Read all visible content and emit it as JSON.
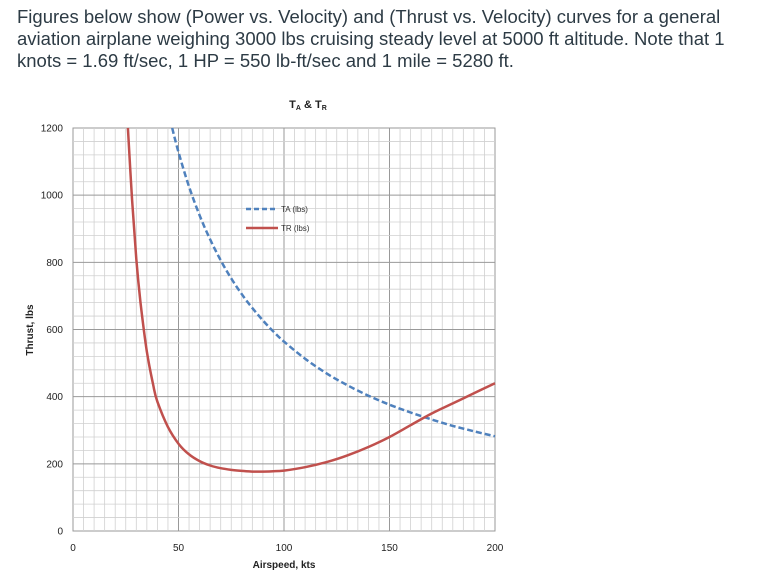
{
  "question": {
    "text": "Figures below show (Power vs. Velocity) and (Thrust vs. Velocity) curves for a general aviation airplane weighing 3000 lbs cruising steady level at 5000 ft altitude. Note that 1 knots = 1.69 ft/sec, 1 HP = 550 lb-ft/sec and 1 mile = 5280 ft."
  },
  "chart_data": {
    "type": "line",
    "title": {
      "main1": "T",
      "sub1": "A",
      "mid": " & T",
      "sub2": "R"
    },
    "xlabel": "Airspeed, kts",
    "ylabel": "Thrust, lbs",
    "xlim": [
      0,
      200
    ],
    "ylim": [
      0,
      1200
    ],
    "x_ticks": [
      0,
      50,
      100,
      150,
      200
    ],
    "x_tick_labels": [
      "0",
      "50",
      "100",
      "150",
      "200"
    ],
    "y_ticks": [
      0,
      200,
      400,
      600,
      800,
      1000,
      1200
    ],
    "y_tick_labels": [
      "0",
      "200",
      "400",
      "600",
      "800",
      "1000",
      "1200"
    ],
    "grid": true,
    "legend_position": "top-center",
    "series": [
      {
        "name": "TA (lbs)",
        "color": "#4f81bd",
        "style": "dashed",
        "x": [
          47,
          50,
          55,
          60,
          65,
          70,
          75,
          80,
          85,
          90,
          95,
          100,
          110,
          120,
          130,
          140,
          150,
          160,
          170,
          180,
          190,
          200
        ],
        "y": [
          1200,
          1128,
          1025,
          940,
          868,
          806,
          752,
          705,
          664,
          627,
          594,
          564,
          513,
          470,
          434,
          403,
          376,
          353,
          332,
          313,
          297,
          282
        ]
      },
      {
        "name": "TR (lbs)",
        "color": "#c0504d",
        "style": "solid",
        "x": [
          26,
          28,
          30,
          32,
          35,
          38,
          40,
          45,
          50,
          55,
          60,
          65,
          70,
          75,
          80,
          85,
          90,
          95,
          100,
          110,
          120,
          130,
          140,
          150,
          160,
          170,
          180,
          190,
          200
        ],
        "y": [
          1200,
          985,
          810,
          680,
          535,
          435,
          385,
          310,
          260,
          228,
          208,
          195,
          187,
          182,
          179,
          177,
          177,
          178,
          180,
          190,
          205,
          225,
          250,
          280,
          315,
          350,
          380,
          410,
          440
        ]
      }
    ]
  }
}
